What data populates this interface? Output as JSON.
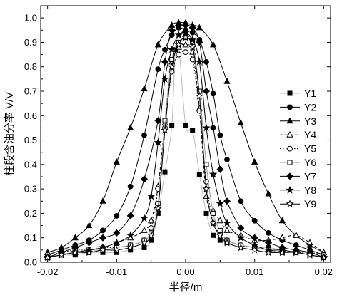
{
  "chart_data": {
    "type": "line",
    "title": "",
    "xlabel": "半径/m",
    "ylabel": "柱段含油分率 V/V",
    "xlim": [
      -0.021,
      0.021
    ],
    "ylim": [
      0.0,
      1.05
    ],
    "xticks": [
      -0.02,
      -0.01,
      0.0,
      0.01,
      0.02
    ],
    "xtick_labels": [
      "-0.02",
      "-0.01",
      "0.00",
      "0.01",
      "0.02"
    ],
    "yticks": [
      0.0,
      0.1,
      0.2,
      0.3,
      0.4,
      0.5,
      0.6,
      0.7,
      0.8,
      0.9,
      1.0
    ],
    "ytick_labels": [
      "0.0",
      "0.1",
      "0.2",
      "0.3",
      "0.4",
      "0.5",
      "0.6",
      "0.7",
      "0.8",
      "0.9",
      "1.0"
    ],
    "legend_position": "right",
    "grid": false,
    "series": [
      {
        "name": "Y1",
        "marker": "square-filled",
        "dash": "",
        "color": "#bbbbbb",
        "x": [
          -0.02,
          -0.018,
          -0.016,
          -0.014,
          -0.012,
          -0.01,
          -0.008,
          -0.006,
          -0.005,
          -0.004,
          -0.003,
          -0.002,
          -0.0015,
          -0.001,
          0.0,
          0.001,
          0.002,
          0.003,
          0.004,
          0.005,
          0.006,
          0.008,
          0.01,
          0.012,
          0.014,
          0.016,
          0.018,
          0.02
        ],
        "y": [
          0.02,
          0.03,
          0.03,
          0.04,
          0.04,
          0.04,
          0.05,
          0.06,
          0.09,
          0.2,
          0.37,
          0.56,
          0.87,
          0.89,
          0.56,
          0.54,
          0.36,
          0.2,
          0.11,
          0.09,
          0.08,
          0.07,
          0.06,
          0.06,
          0.05,
          0.04,
          0.04,
          0.02
        ]
      },
      {
        "name": "Y2",
        "marker": "circle-filled",
        "dash": "",
        "color": "#000000",
        "x": [
          -0.02,
          -0.018,
          -0.016,
          -0.014,
          -0.012,
          -0.01,
          -0.008,
          -0.006,
          -0.004,
          -0.003,
          -0.002,
          -0.001,
          0.0,
          0.001,
          0.002,
          0.003,
          0.004,
          0.005,
          0.006,
          0.008,
          0.01,
          0.012,
          0.014,
          0.016,
          0.018,
          0.02
        ],
        "y": [
          0.03,
          0.05,
          0.07,
          0.09,
          0.13,
          0.19,
          0.31,
          0.52,
          0.79,
          0.87,
          0.93,
          0.96,
          0.95,
          0.94,
          0.91,
          0.82,
          0.69,
          0.52,
          0.42,
          0.25,
          0.17,
          0.12,
          0.09,
          0.07,
          0.05,
          0.03
        ]
      },
      {
        "name": "Y3",
        "marker": "triangle-filled",
        "dash": "",
        "color": "#000000",
        "x": [
          -0.02,
          -0.018,
          -0.016,
          -0.014,
          -0.012,
          -0.01,
          -0.008,
          -0.006,
          -0.004,
          -0.002,
          -0.001,
          0.0,
          0.001,
          0.002,
          0.004,
          0.006,
          0.008,
          0.01,
          0.012,
          0.014,
          0.016,
          0.018,
          0.02
        ],
        "y": [
          0.04,
          0.06,
          0.1,
          0.15,
          0.25,
          0.41,
          0.55,
          0.71,
          0.89,
          0.97,
          0.98,
          0.98,
          0.97,
          0.96,
          0.89,
          0.74,
          0.57,
          0.41,
          0.28,
          0.17,
          0.11,
          0.07,
          0.04
        ]
      },
      {
        "name": "Y4",
        "marker": "triangle-open",
        "dash": "4 3",
        "color": "#000000",
        "x": [
          -0.02,
          -0.018,
          -0.016,
          -0.014,
          -0.012,
          -0.01,
          -0.008,
          -0.006,
          -0.005,
          -0.004,
          -0.003,
          -0.002,
          -0.001,
          0.0,
          0.001,
          0.002,
          0.003,
          0.004,
          0.005,
          0.006,
          0.008,
          0.01,
          0.012,
          0.014,
          0.016,
          0.018,
          0.02
        ],
        "y": [
          0.02,
          0.03,
          0.04,
          0.05,
          0.06,
          0.08,
          0.1,
          0.13,
          0.17,
          0.31,
          0.57,
          0.82,
          0.88,
          0.89,
          0.86,
          0.63,
          0.27,
          0.21,
          0.17,
          0.13,
          0.11,
          0.09,
          0.09,
          0.1,
          0.11,
          0.08,
          0.04
        ]
      },
      {
        "name": "Y5",
        "marker": "circle-open",
        "dash": "1.5 2.5",
        "color": "#000000",
        "x": [
          -0.02,
          -0.018,
          -0.016,
          -0.014,
          -0.012,
          -0.01,
          -0.008,
          -0.006,
          -0.005,
          -0.004,
          -0.003,
          -0.002,
          -0.001,
          0.0,
          0.001,
          0.002,
          0.003,
          0.004,
          0.005,
          0.006,
          0.008,
          0.01,
          0.012,
          0.014,
          0.016,
          0.018,
          0.02
        ],
        "y": [
          0.03,
          0.04,
          0.05,
          0.05,
          0.06,
          0.06,
          0.07,
          0.09,
          0.14,
          0.3,
          0.55,
          0.78,
          0.85,
          0.86,
          0.83,
          0.62,
          0.33,
          0.16,
          0.12,
          0.09,
          0.07,
          0.06,
          0.05,
          0.05,
          0.04,
          0.04,
          0.03
        ]
      },
      {
        "name": "Y6",
        "marker": "square-open",
        "dash": "",
        "color": "#999999",
        "x": [
          -0.02,
          -0.018,
          -0.016,
          -0.014,
          -0.012,
          -0.01,
          -0.008,
          -0.006,
          -0.005,
          -0.004,
          -0.003,
          -0.002,
          -0.001,
          0.0,
          0.001,
          0.002,
          0.003,
          0.004,
          0.005,
          0.006,
          0.008,
          0.01,
          0.012,
          0.014,
          0.016,
          0.018,
          0.02
        ],
        "y": [
          0.02,
          0.03,
          0.04,
          0.05,
          0.05,
          0.06,
          0.07,
          0.09,
          0.12,
          0.24,
          0.58,
          0.83,
          0.9,
          0.92,
          0.9,
          0.7,
          0.4,
          0.2,
          0.13,
          0.09,
          0.07,
          0.06,
          0.05,
          0.04,
          0.04,
          0.03,
          0.02
        ]
      },
      {
        "name": "Y7",
        "marker": "diamond-filled",
        "dash": "",
        "color": "#000000",
        "x": [
          -0.02,
          -0.018,
          -0.016,
          -0.014,
          -0.012,
          -0.01,
          -0.008,
          -0.006,
          -0.004,
          -0.003,
          -0.002,
          -0.001,
          0.0,
          0.001,
          0.002,
          0.003,
          0.004,
          0.005,
          0.006,
          0.008,
          0.01,
          0.012,
          0.014,
          0.016,
          0.018,
          0.02
        ],
        "y": [
          0.02,
          0.04,
          0.06,
          0.08,
          0.1,
          0.12,
          0.19,
          0.34,
          0.58,
          0.82,
          0.95,
          0.97,
          0.97,
          0.96,
          0.9,
          0.7,
          0.55,
          0.38,
          0.25,
          0.14,
          0.1,
          0.08,
          0.06,
          0.05,
          0.04,
          0.02
        ]
      },
      {
        "name": "Y8",
        "marker": "star-filled",
        "dash": "",
        "color": "#000000",
        "x": [
          -0.02,
          -0.018,
          -0.016,
          -0.014,
          -0.012,
          -0.01,
          -0.008,
          -0.006,
          -0.005,
          -0.004,
          -0.003,
          -0.002,
          -0.001,
          0.0,
          0.001,
          0.002,
          0.003,
          0.004,
          0.005,
          0.006,
          0.008,
          0.01,
          0.012,
          0.014,
          0.016,
          0.018,
          0.02
        ],
        "y": [
          0.02,
          0.03,
          0.04,
          0.05,
          0.06,
          0.08,
          0.11,
          0.18,
          0.27,
          0.49,
          0.75,
          0.87,
          0.93,
          0.94,
          0.91,
          0.82,
          0.55,
          0.36,
          0.24,
          0.16,
          0.1,
          0.07,
          0.05,
          0.05,
          0.04,
          0.03,
          0.02
        ]
      },
      {
        "name": "Y9",
        "marker": "star-open",
        "dash": "",
        "color": "#000000",
        "x": [
          -0.02,
          -0.018,
          -0.016,
          -0.014,
          -0.012,
          -0.01,
          -0.008,
          -0.006,
          -0.005,
          -0.004,
          -0.003,
          -0.002,
          -0.001,
          0.0,
          0.001,
          0.002,
          0.003,
          0.004,
          0.005,
          0.006,
          0.008,
          0.01,
          0.012,
          0.014,
          0.016,
          0.018,
          0.02
        ],
        "y": [
          0.02,
          0.03,
          0.04,
          0.04,
          0.05,
          0.05,
          0.06,
          0.08,
          0.11,
          0.22,
          0.54,
          0.8,
          0.89,
          0.92,
          0.88,
          0.68,
          0.3,
          0.16,
          0.11,
          0.08,
          0.06,
          0.05,
          0.04,
          0.04,
          0.04,
          0.03,
          0.02
        ]
      }
    ]
  }
}
